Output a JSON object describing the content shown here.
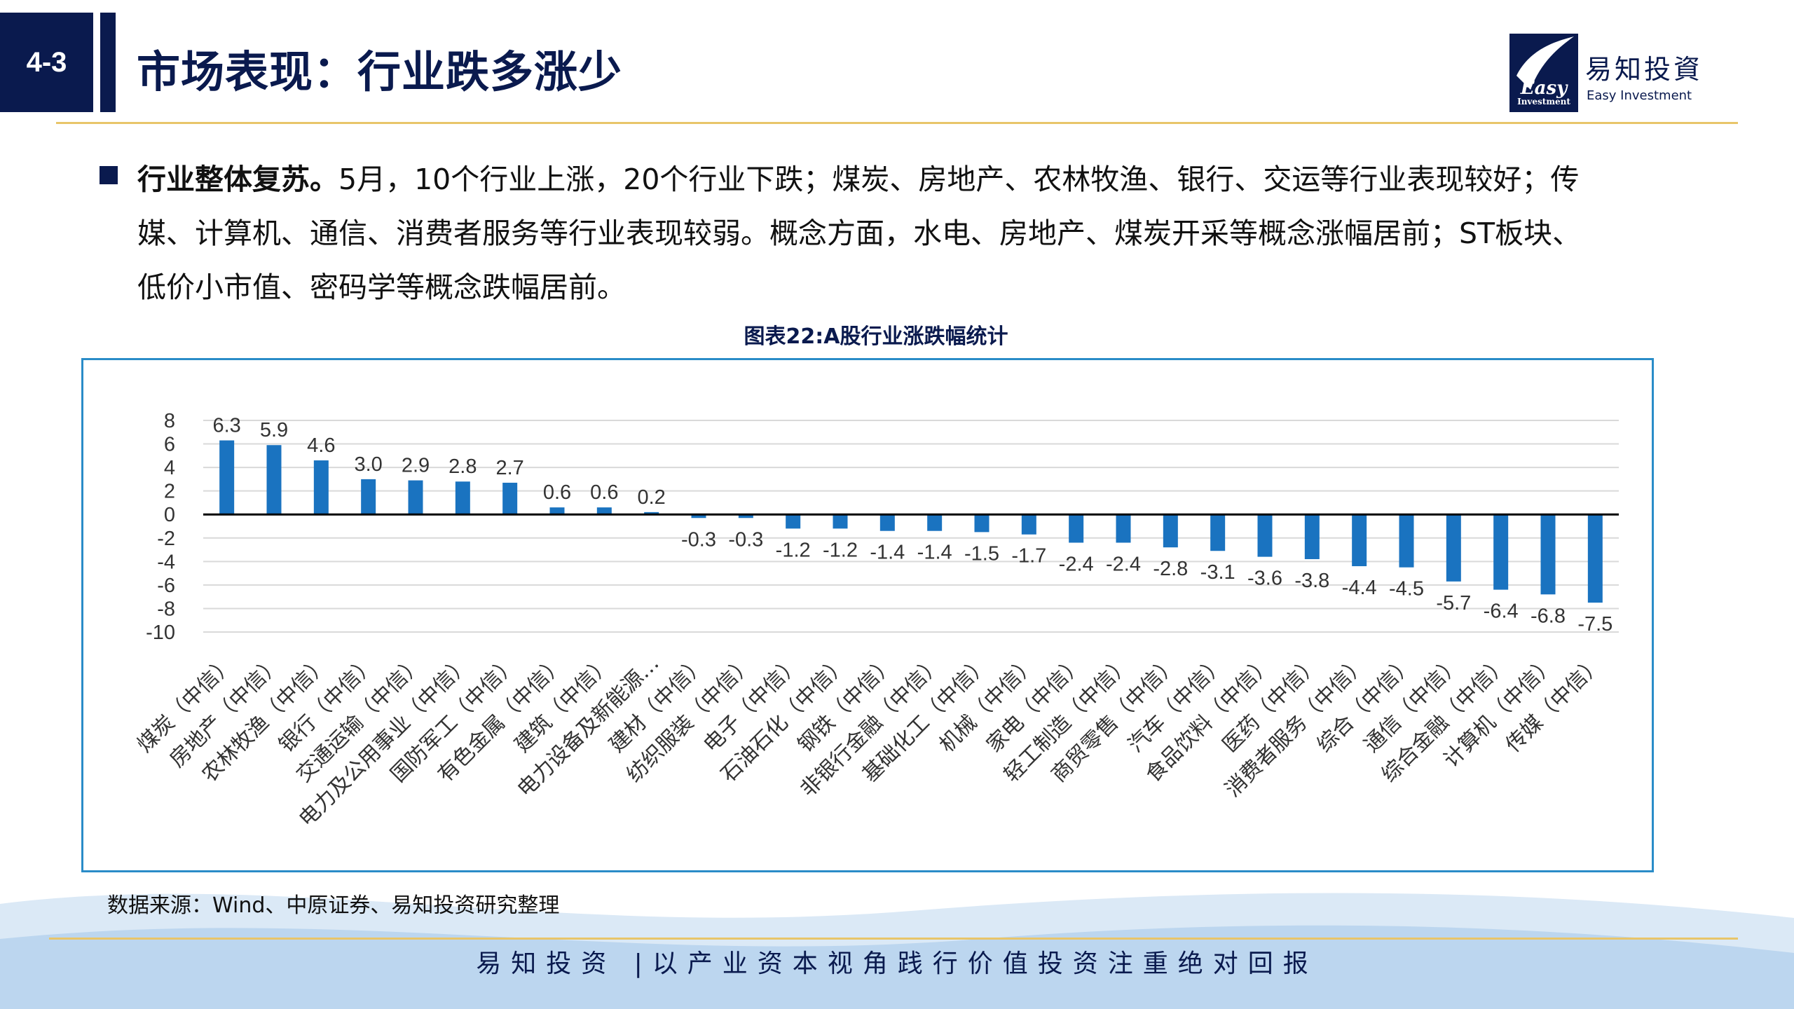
{
  "section": {
    "number": "4-3"
  },
  "header": {
    "title": "市场表现：行业跌多涨少"
  },
  "logo": {
    "cn": "易知投資",
    "en": "Easy Investment",
    "badge_text": "Easy",
    "badge_sub": "Investment"
  },
  "bullet": {
    "lead": "行业整体复苏。",
    "line1": "5月，10个行业上涨，20个行业下跌；煤炭、房地产、农林牧渔、银行、交运等行业表现较好；传",
    "line2": "媒、计算机、通信、消费者服务等行业表现较弱。概念方面，水电、房地产、煤炭开采等概念涨幅居前；ST板块、",
    "line3": "低价小市值、密码学等概念跌幅居前。"
  },
  "chart_title": "图表22:A股行业涨跌幅统计",
  "chart_data": {
    "type": "bar",
    "title": "图表22:A股行业涨跌幅统计",
    "xlabel": "",
    "ylabel": "",
    "ylim": [
      -10,
      8
    ],
    "yticks": [
      "8",
      "6",
      "4",
      "2",
      "0",
      "-2",
      "-4",
      "-6",
      "-8",
      "-10"
    ],
    "grid": true,
    "bar_color": "#1a73c0",
    "categories": [
      "煤炭（中信）",
      "房地产（中信）",
      "农林牧渔（中信）",
      "银行（中信）",
      "交通运输（中信）",
      "电力及公用事业（中信）",
      "国防军工（中信）",
      "有色金属（中信）",
      "建筑（中信）",
      "电力设备及新能源…",
      "建材（中信）",
      "纺织服装（中信）",
      "电子（中信）",
      "石油石化（中信）",
      "钢铁（中信）",
      "非银行金融（中信）",
      "基础化工（中信）",
      "机械（中信）",
      "家电（中信）",
      "轻工制造（中信）",
      "商贸零售（中信）",
      "汽车（中信）",
      "食品饮料（中信）",
      "医药（中信）",
      "消费者服务（中信）",
      "综合（中信）",
      "通信（中信）",
      "综合金融（中信）",
      "计算机（中信）",
      "传媒（中信）"
    ],
    "values": [
      6.3,
      5.9,
      4.6,
      3.0,
      2.9,
      2.8,
      2.7,
      0.6,
      0.6,
      0.2,
      -0.3,
      -0.3,
      -1.2,
      -1.2,
      -1.4,
      -1.4,
      -1.5,
      -1.7,
      -2.4,
      -2.4,
      -2.8,
      -3.1,
      -3.6,
      -3.8,
      -4.4,
      -4.5,
      -5.7,
      -6.4,
      -6.8,
      -7.5
    ],
    "value_labels": [
      "6.3",
      "5.9",
      "4.6",
      "3.0",
      "2.9",
      "2.8",
      "2.7",
      "0.6",
      "0.6",
      "0.2",
      "-0.3",
      "-0.3",
      "-1.2",
      "-1.2",
      "-1.4",
      "-1.4",
      "-1.5",
      "-1.7",
      "-2.4",
      "-2.4",
      "-2.8",
      "-3.1",
      "-3.6",
      "-3.8",
      "-4.4",
      "-4.5",
      "-5.7",
      "-6.4",
      "-6.8",
      "-7.5"
    ]
  },
  "source": "数据来源：Wind、中原证券、易知投资研究整理",
  "footer": "易知投资 |以产业资本视角践行价值投资注重绝对回报",
  "colors": {
    "navy": "#0a1a4e",
    "gold": "#e8c56a",
    "frame": "#2a8cc8",
    "bar": "#1a73c0"
  }
}
